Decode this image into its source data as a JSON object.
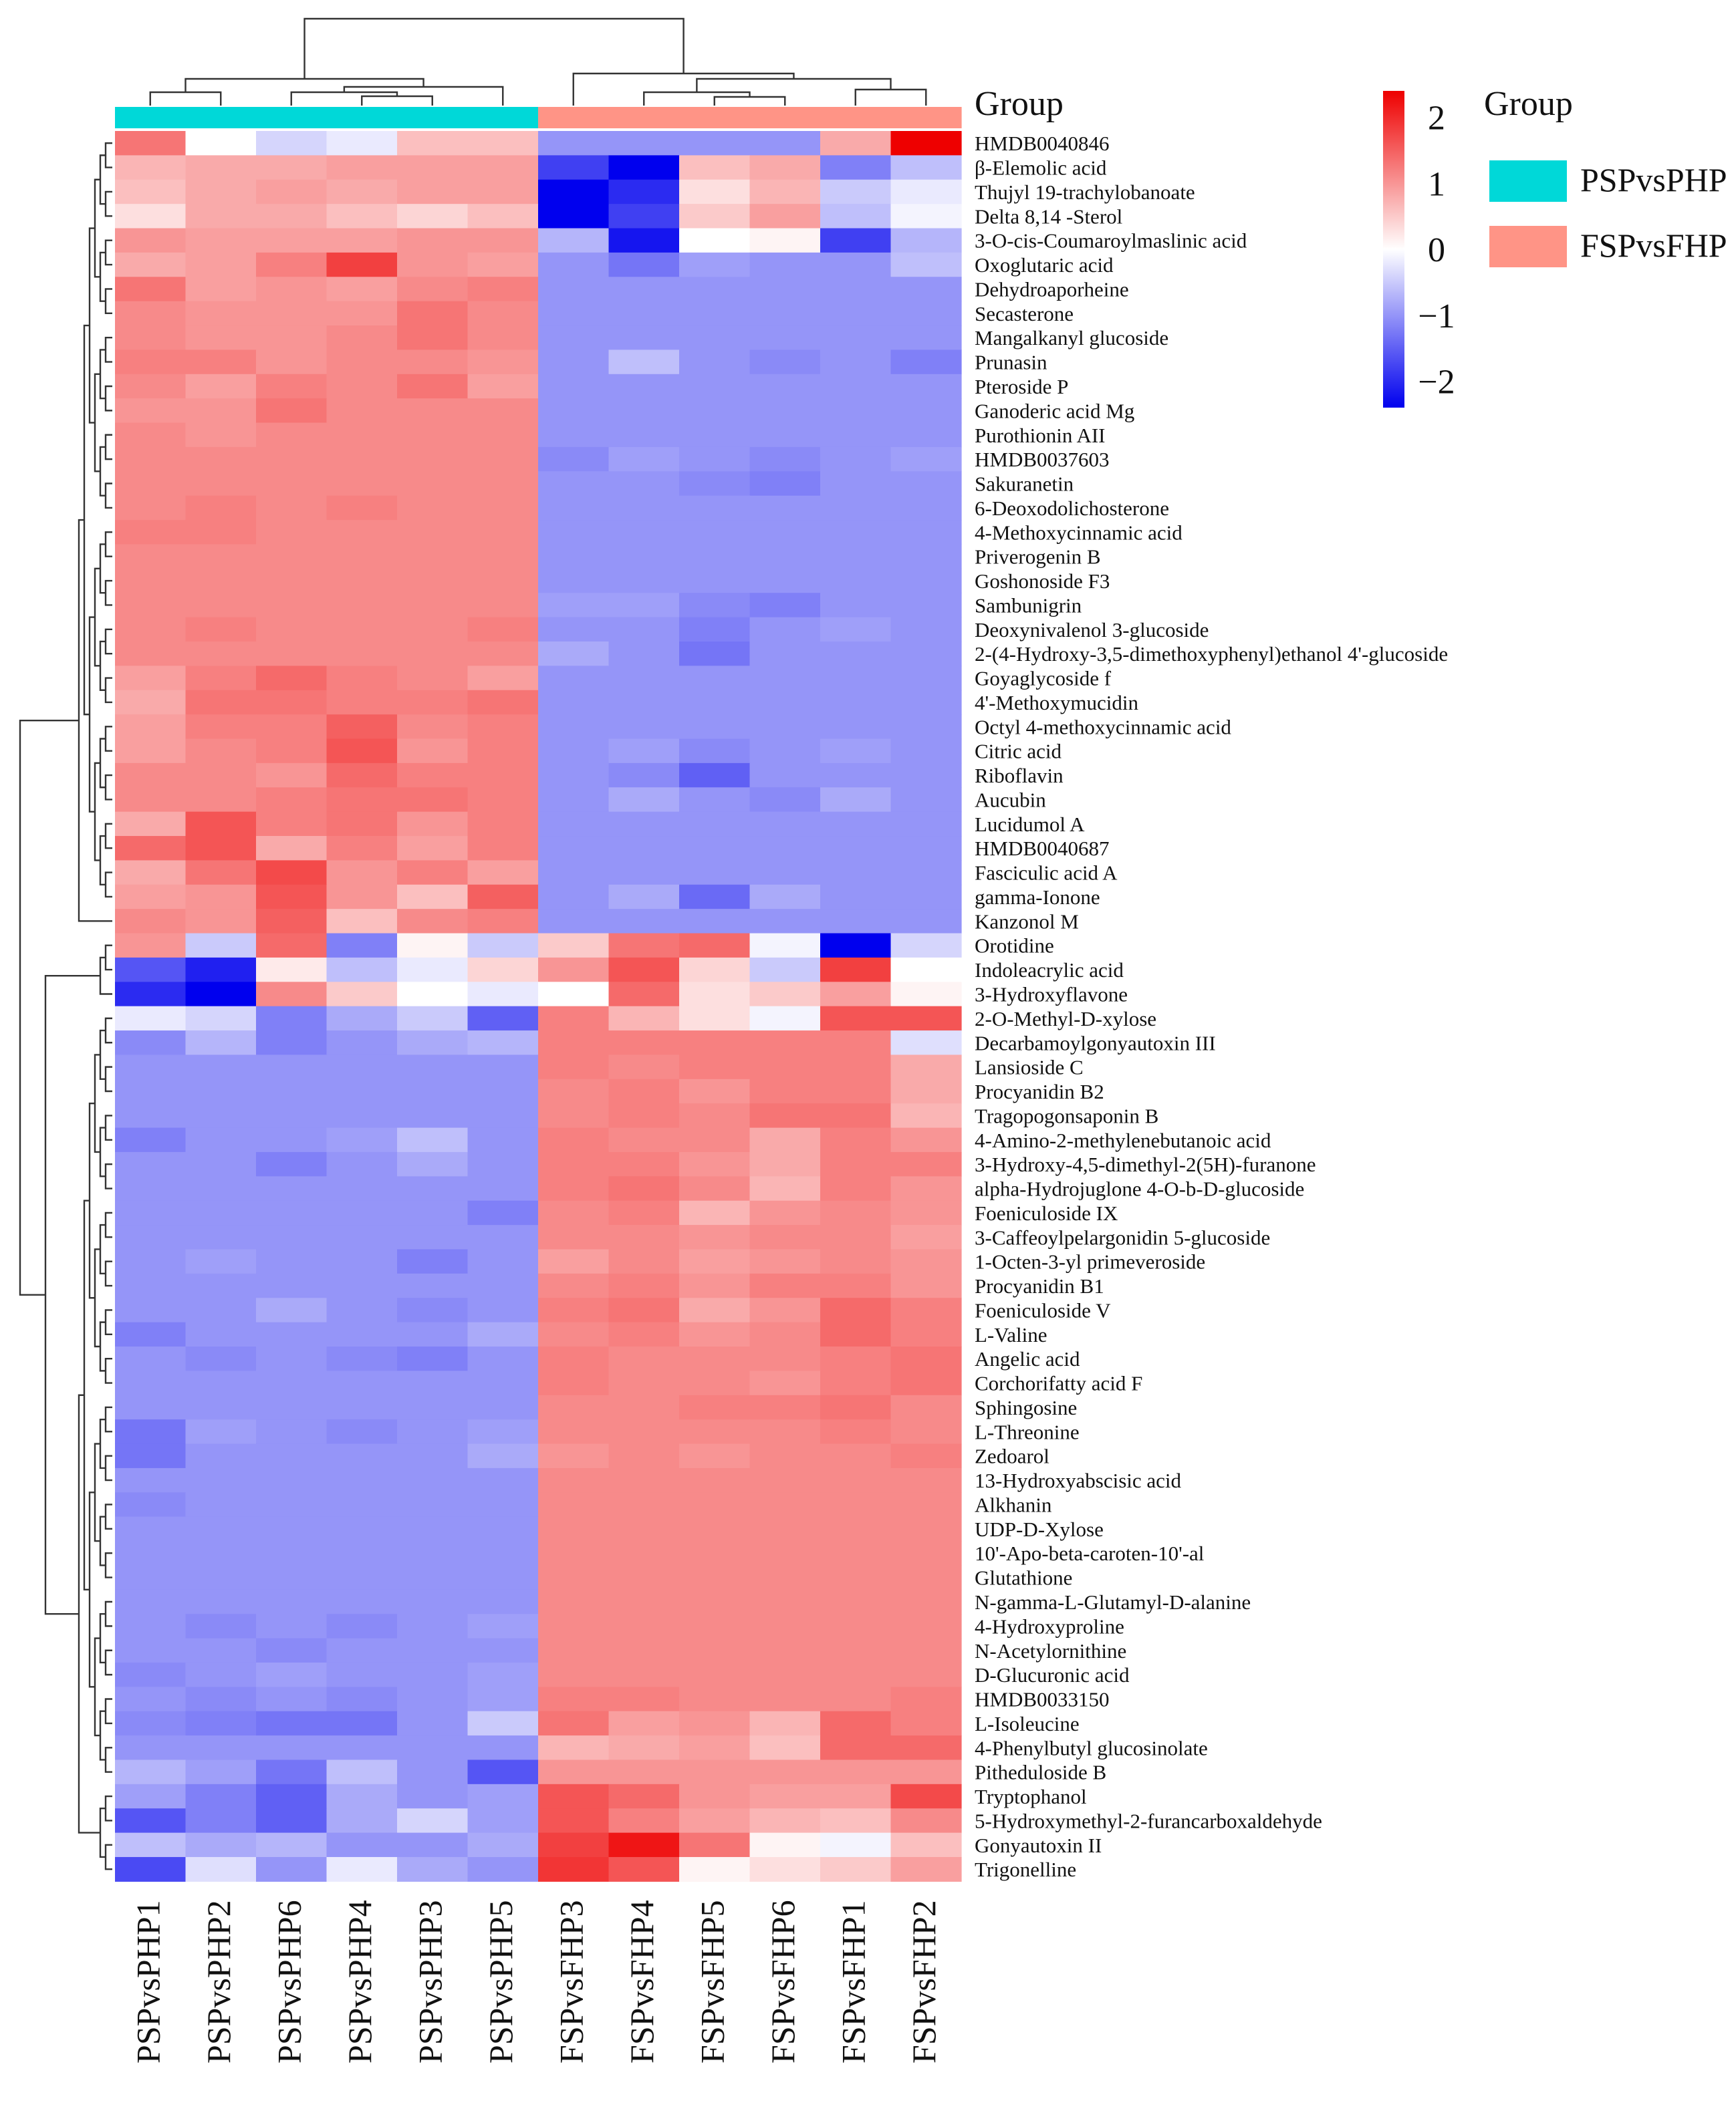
{
  "chart_data": {
    "type": "heatmap",
    "title": "",
    "color_scale": {
      "min": -2.4,
      "max": 2.4,
      "low_color": "#0000ee",
      "mid_color": "#ffffff",
      "high_color": "#ee0000",
      "ticks": [
        2,
        1,
        0,
        -1,
        -2
      ],
      "tick_labels": [
        "2",
        "1",
        "0",
        "−1",
        "−2"
      ]
    },
    "group_annotation": {
      "label": "Group",
      "legend_title": "Group",
      "groups": [
        {
          "name": "PSPvsPHP",
          "color": "#00d8d8"
        },
        {
          "name": "FSPvsFHP",
          "color": "#ff9486"
        }
      ],
      "column_groups": [
        "PSPvsPHP",
        "PSPvsPHP",
        "PSPvsPHP",
        "PSPvsPHP",
        "PSPvsPHP",
        "PSPvsPHP",
        "FSPvsFHP",
        "FSPvsFHP",
        "FSPvsFHP",
        "FSPvsFHP",
        "FSPvsFHP",
        "FSPvsFHP"
      ]
    },
    "columns": [
      "PSPvsPHP1",
      "PSPvsPHP2",
      "PSPvsPHP6",
      "PSPvsPHP4",
      "PSPvsPHP3",
      "PSPvsPHP5",
      "FSPvsFHP3",
      "FSPvsFHP4",
      "FSPvsFHP5",
      "FSPvsFHP6",
      "FSPvsFHP1",
      "FSPvsFHP2"
    ],
    "rows": [
      "HMDB0040846",
      "β-Elemolic acid",
      "Thujyl 19-trachylobanoate",
      "Delta 8,14 -Sterol",
      "3-O-cis-Coumaroylmaslinic acid",
      "Oxoglutaric acid",
      "Dehydroaporheine",
      "Secasterone",
      "Mangalkanyl glucoside",
      "Prunasin",
      "Pteroside P",
      "Ganoderic acid Mg",
      "Purothionin AII",
      "HMDB0037603",
      "Sakuranetin",
      "6-Deoxodolichosterone",
      "4-Methoxycinnamic acid",
      "Priverogenin B",
      "Goshonoside F3",
      "Sambunigrin",
      "Deoxynivalenol 3-glucoside",
      "2-(4-Hydroxy-3,5-dimethoxyphenyl)ethanol 4'-glucoside",
      "Goyaglycoside f",
      "4'-Methoxymucidin",
      "Octyl 4-methoxycinnamic acid",
      "Citric acid",
      "Riboflavin",
      "Aucubin",
      "Lucidumol A",
      "HMDB0040687",
      "Fasciculic acid A",
      "gamma-Ionone",
      "Kanzonol M",
      "Orotidine",
      "Indoleacrylic acid",
      "3-Hydroxyflavone",
      "2-O-Methyl-D-xylose",
      "Decarbamoylgonyautoxin III",
      "Lansioside C",
      "Procyanidin B2",
      "Tragopogonsaponin B",
      "4-Amino-2-methylenebutanoic acid",
      "3-Hydroxy-4,5-dimethyl-2(5H)-furanone",
      "alpha-Hydrojuglone 4-O-b-D-glucoside",
      "Foeniculoside IX",
      "3-Caffeoylpelargonidin 5-glucoside",
      "1-Octen-3-yl primeveroside",
      "Procyanidin B1",
      "Foeniculoside V",
      "L-Valine",
      "Angelic acid",
      "Corchorifatty acid F",
      "Sphingosine",
      "L-Threonine",
      "Zedoarol",
      "13-Hydroxyabscisic acid",
      "Alkhanin",
      "UDP-D-Xylose",
      "10'-Apo-beta-caroten-10'-al",
      "Glutathione",
      "N-gamma-L-Glutamyl-D-alanine",
      "4-Hydroxyproline",
      "N-Acetylornithine",
      "D-Glucuronic acid",
      "HMDB0033150",
      "L-Isoleucine",
      "4-Phenylbutyl glucosinolate",
      "Pitheduloside B",
      "Tryptophanol",
      "5-Hydroxymethyl-2-furancarboxaldehyde",
      "Gonyautoxin II",
      "Trigonelline"
    ],
    "values": [
      [
        1.3,
        0.0,
        -0.4,
        -0.2,
        0.6,
        0.6,
        -1.0,
        -1.0,
        -1.0,
        -1.0,
        0.8,
        2.4
      ],
      [
        0.7,
        0.8,
        0.8,
        0.9,
        0.9,
        0.9,
        -1.8,
        -2.4,
        0.6,
        0.8,
        -1.2,
        -0.6
      ],
      [
        0.6,
        0.8,
        0.9,
        0.8,
        0.9,
        0.9,
        -2.4,
        -2.0,
        0.3,
        0.7,
        -0.5,
        -0.2
      ],
      [
        0.3,
        0.8,
        0.8,
        0.6,
        0.4,
        0.6,
        -2.4,
        -1.8,
        0.5,
        0.9,
        -0.6,
        -0.1
      ],
      [
        1.0,
        0.9,
        0.9,
        0.9,
        1.0,
        1.0,
        -0.7,
        -2.2,
        0.0,
        0.1,
        -1.8,
        -0.7
      ],
      [
        0.8,
        0.9,
        1.2,
        1.8,
        1.0,
        0.9,
        -1.0,
        -1.3,
        -0.9,
        -1.0,
        -1.0,
        -0.6
      ],
      [
        1.3,
        0.9,
        1.0,
        0.9,
        1.1,
        1.2,
        -1.0,
        -1.0,
        -1.0,
        -1.0,
        -1.0,
        -1.0
      ],
      [
        1.1,
        1.0,
        1.0,
        1.0,
        1.3,
        1.1,
        -1.0,
        -1.0,
        -1.0,
        -1.0,
        -1.0,
        -1.0
      ],
      [
        1.1,
        1.0,
        1.0,
        1.1,
        1.3,
        1.1,
        -1.0,
        -1.0,
        -1.0,
        -1.0,
        -1.0,
        -1.0
      ],
      [
        1.2,
        1.2,
        1.0,
        1.1,
        1.1,
        1.0,
        -1.0,
        -0.6,
        -1.0,
        -1.1,
        -1.0,
        -1.2
      ],
      [
        1.1,
        0.9,
        1.2,
        1.1,
        1.3,
        0.9,
        -1.0,
        -1.0,
        -1.0,
        -1.0,
        -1.0,
        -1.0
      ],
      [
        1.0,
        1.0,
        1.3,
        1.1,
        1.1,
        1.1,
        -1.0,
        -1.0,
        -1.0,
        -1.0,
        -1.0,
        -1.0
      ],
      [
        1.1,
        1.0,
        1.1,
        1.1,
        1.1,
        1.1,
        -1.0,
        -1.0,
        -1.0,
        -1.0,
        -1.0,
        -1.0
      ],
      [
        1.1,
        1.1,
        1.1,
        1.1,
        1.1,
        1.1,
        -1.1,
        -0.9,
        -1.0,
        -1.1,
        -1.0,
        -0.9
      ],
      [
        1.1,
        1.1,
        1.1,
        1.1,
        1.1,
        1.1,
        -1.0,
        -1.0,
        -1.1,
        -1.2,
        -1.0,
        -1.0
      ],
      [
        1.1,
        1.2,
        1.1,
        1.2,
        1.1,
        1.1,
        -1.0,
        -1.0,
        -1.0,
        -1.0,
        -1.0,
        -1.0
      ],
      [
        1.2,
        1.2,
        1.1,
        1.1,
        1.1,
        1.1,
        -1.0,
        -1.0,
        -1.0,
        -1.0,
        -1.0,
        -1.0
      ],
      [
        1.1,
        1.1,
        1.1,
        1.1,
        1.1,
        1.1,
        -1.0,
        -1.0,
        -1.0,
        -1.0,
        -1.0,
        -1.0
      ],
      [
        1.1,
        1.1,
        1.1,
        1.1,
        1.1,
        1.1,
        -1.0,
        -1.0,
        -1.0,
        -1.0,
        -1.0,
        -1.0
      ],
      [
        1.1,
        1.1,
        1.1,
        1.1,
        1.1,
        1.1,
        -0.9,
        -0.9,
        -1.1,
        -1.2,
        -1.0,
        -1.0
      ],
      [
        1.1,
        1.2,
        1.1,
        1.1,
        1.1,
        1.2,
        -1.0,
        -1.0,
        -1.2,
        -1.0,
        -0.9,
        -1.0
      ],
      [
        1.1,
        1.1,
        1.1,
        1.1,
        1.1,
        1.1,
        -0.8,
        -1.0,
        -1.3,
        -1.0,
        -1.0,
        -1.0
      ],
      [
        0.9,
        1.2,
        1.4,
        1.2,
        1.1,
        0.9,
        -1.0,
        -1.0,
        -1.0,
        -1.0,
        -1.0,
        -1.0
      ],
      [
        0.8,
        1.3,
        1.3,
        1.2,
        1.2,
        1.3,
        -1.0,
        -1.0,
        -1.0,
        -1.0,
        -1.0,
        -1.0
      ],
      [
        0.9,
        1.2,
        1.2,
        1.5,
        1.1,
        1.2,
        -1.0,
        -1.0,
        -1.0,
        -1.0,
        -1.0,
        -1.0
      ],
      [
        0.9,
        1.1,
        1.2,
        1.6,
        1.0,
        1.2,
        -1.0,
        -0.9,
        -1.1,
        -1.0,
        -0.9,
        -1.0
      ],
      [
        1.1,
        1.1,
        1.0,
        1.4,
        1.2,
        1.2,
        -1.0,
        -1.1,
        -1.5,
        -1.0,
        -1.0,
        -1.0
      ],
      [
        1.1,
        1.1,
        1.2,
        1.3,
        1.3,
        1.2,
        -1.0,
        -0.8,
        -1.0,
        -1.1,
        -0.8,
        -1.0
      ],
      [
        0.8,
        1.6,
        1.2,
        1.3,
        1.0,
        1.2,
        -1.0,
        -1.0,
        -1.0,
        -1.0,
        -1.0,
        -1.0
      ],
      [
        1.4,
        1.6,
        0.8,
        1.2,
        0.9,
        1.2,
        -1.0,
        -1.0,
        -1.0,
        -1.0,
        -1.0,
        -1.0
      ],
      [
        0.8,
        1.3,
        1.7,
        1.0,
        1.2,
        0.9,
        -1.0,
        -1.0,
        -1.0,
        -1.0,
        -1.0,
        -1.0
      ],
      [
        0.9,
        1.0,
        1.6,
        1.0,
        0.6,
        1.5,
        -1.0,
        -0.8,
        -1.4,
        -0.8,
        -1.0,
        -1.0
      ],
      [
        1.1,
        1.0,
        1.5,
        0.6,
        1.1,
        1.2,
        -1.0,
        -1.0,
        -1.0,
        -1.0,
        -1.0,
        -1.0
      ],
      [
        1.0,
        -0.5,
        1.4,
        -1.2,
        0.1,
        -0.5,
        0.5,
        1.3,
        1.4,
        -0.1,
        -2.4,
        -0.4
      ],
      [
        -1.6,
        -2.1,
        0.2,
        -0.6,
        -0.2,
        0.4,
        1.0,
        1.6,
        0.4,
        -0.5,
        1.8,
        0.0
      ],
      [
        -2.0,
        -2.4,
        1.1,
        0.5,
        0.0,
        -0.2,
        0.0,
        1.4,
        0.3,
        0.5,
        0.9,
        0.1
      ],
      [
        -0.2,
        -0.4,
        -1.2,
        -0.8,
        -0.5,
        -1.5,
        1.2,
        0.7,
        0.3,
        -0.1,
        1.6,
        1.6
      ],
      [
        -1.1,
        -0.7,
        -1.2,
        -1.0,
        -0.8,
        -0.7,
        1.2,
        1.2,
        1.2,
        1.2,
        1.2,
        -0.3
      ],
      [
        -1.0,
        -1.0,
        -1.0,
        -1.0,
        -1.0,
        -1.0,
        1.2,
        1.1,
        1.2,
        1.2,
        1.2,
        0.8
      ],
      [
        -1.0,
        -1.0,
        -1.0,
        -1.0,
        -1.0,
        -1.0,
        1.1,
        1.2,
        1.0,
        1.2,
        1.2,
        0.8
      ],
      [
        -1.0,
        -1.0,
        -1.0,
        -1.0,
        -1.0,
        -1.0,
        1.1,
        1.2,
        1.1,
        1.3,
        1.3,
        0.7
      ],
      [
        -1.2,
        -1.0,
        -1.0,
        -0.9,
        -0.6,
        -1.0,
        1.2,
        1.1,
        1.1,
        0.8,
        1.2,
        1.0
      ],
      [
        -1.0,
        -1.0,
        -1.2,
        -1.0,
        -0.8,
        -1.0,
        1.2,
        1.2,
        1.0,
        0.8,
        1.2,
        1.2
      ],
      [
        -1.0,
        -1.0,
        -1.0,
        -1.0,
        -1.0,
        -1.0,
        1.2,
        1.3,
        1.1,
        0.7,
        1.2,
        1.0
      ],
      [
        -1.0,
        -1.0,
        -1.0,
        -1.0,
        -1.0,
        -1.2,
        1.1,
        1.2,
        0.7,
        1.0,
        1.1,
        1.0
      ],
      [
        -1.0,
        -1.0,
        -1.0,
        -1.0,
        -1.0,
        -1.0,
        1.1,
        1.1,
        1.0,
        1.1,
        1.1,
        0.9
      ],
      [
        -1.0,
        -0.9,
        -1.0,
        -1.0,
        -1.2,
        -1.0,
        0.9,
        1.1,
        0.9,
        1.0,
        1.1,
        1.0
      ],
      [
        -1.0,
        -1.0,
        -1.0,
        -1.0,
        -1.0,
        -1.0,
        1.1,
        1.2,
        1.0,
        1.2,
        1.2,
        1.0
      ],
      [
        -1.0,
        -1.0,
        -0.8,
        -1.0,
        -1.1,
        -1.0,
        1.2,
        1.3,
        0.8,
        1.0,
        1.4,
        1.2
      ],
      [
        -1.2,
        -1.0,
        -1.0,
        -1.0,
        -1.0,
        -0.8,
        1.1,
        1.2,
        1.0,
        1.1,
        1.4,
        1.2
      ],
      [
        -1.0,
        -1.1,
        -1.0,
        -1.1,
        -1.2,
        -1.0,
        1.2,
        1.1,
        1.1,
        1.1,
        1.2,
        1.3
      ],
      [
        -1.0,
        -1.0,
        -1.0,
        -1.0,
        -1.0,
        -1.0,
        1.2,
        1.1,
        1.1,
        1.0,
        1.2,
        1.3
      ],
      [
        -1.0,
        -1.0,
        -1.0,
        -1.0,
        -1.0,
        -1.0,
        1.1,
        1.1,
        1.2,
        1.2,
        1.3,
        1.1
      ],
      [
        -1.3,
        -0.9,
        -1.0,
        -1.1,
        -1.0,
        -0.9,
        1.1,
        1.1,
        1.1,
        1.1,
        1.2,
        1.1
      ],
      [
        -1.3,
        -1.0,
        -1.0,
        -1.0,
        -1.0,
        -0.8,
        1.0,
        1.1,
        1.0,
        1.1,
        1.1,
        1.2
      ],
      [
        -1.0,
        -1.0,
        -1.0,
        -1.0,
        -1.0,
        -1.0,
        1.1,
        1.1,
        1.1,
        1.1,
        1.1,
        1.1
      ],
      [
        -1.1,
        -1.0,
        -1.0,
        -1.0,
        -1.0,
        -1.0,
        1.1,
        1.1,
        1.1,
        1.1,
        1.1,
        1.1
      ],
      [
        -1.0,
        -1.0,
        -1.0,
        -1.0,
        -1.0,
        -1.0,
        1.1,
        1.1,
        1.1,
        1.1,
        1.1,
        1.1
      ],
      [
        -1.0,
        -1.0,
        -1.0,
        -1.0,
        -1.0,
        -1.0,
        1.1,
        1.1,
        1.1,
        1.1,
        1.1,
        1.1
      ],
      [
        -1.0,
        -1.0,
        -1.0,
        -1.0,
        -1.0,
        -1.0,
        1.1,
        1.1,
        1.1,
        1.1,
        1.1,
        1.1
      ],
      [
        -1.0,
        -1.0,
        -1.0,
        -1.0,
        -1.0,
        -1.0,
        1.1,
        1.1,
        1.1,
        1.1,
        1.1,
        1.1
      ],
      [
        -1.0,
        -1.1,
        -1.0,
        -1.1,
        -1.0,
        -0.9,
        1.1,
        1.1,
        1.1,
        1.1,
        1.1,
        1.1
      ],
      [
        -1.0,
        -1.0,
        -1.1,
        -1.0,
        -1.0,
        -1.0,
        1.1,
        1.1,
        1.1,
        1.1,
        1.1,
        1.1
      ],
      [
        -1.1,
        -1.0,
        -0.9,
        -1.0,
        -1.0,
        -0.9,
        1.1,
        1.1,
        1.1,
        1.1,
        1.1,
        1.1
      ],
      [
        -1.0,
        -1.1,
        -1.0,
        -1.1,
        -1.0,
        -0.9,
        1.2,
        1.2,
        1.1,
        1.1,
        1.1,
        1.2
      ],
      [
        -1.1,
        -1.2,
        -1.3,
        -1.3,
        -1.0,
        -0.5,
        1.3,
        0.9,
        1.0,
        0.7,
        1.4,
        1.2
      ],
      [
        -1.0,
        -1.0,
        -1.0,
        -1.0,
        -1.0,
        -1.0,
        0.7,
        0.8,
        0.9,
        0.6,
        1.4,
        1.4
      ],
      [
        -0.7,
        -0.9,
        -1.3,
        -0.6,
        -1.0,
        -1.6,
        1.0,
        1.0,
        1.0,
        1.0,
        1.0,
        1.0
      ],
      [
        -0.9,
        -1.2,
        -1.5,
        -0.8,
        -1.0,
        -0.9,
        1.6,
        1.4,
        1.0,
        0.9,
        0.9,
        1.7
      ],
      [
        -1.6,
        -1.2,
        -1.5,
        -0.8,
        -0.4,
        -0.9,
        1.6,
        1.2,
        0.9,
        0.7,
        0.6,
        1.1
      ],
      [
        -0.6,
        -0.8,
        -0.7,
        -1.0,
        -1.0,
        -0.8,
        1.8,
        2.2,
        1.3,
        0.1,
        -0.1,
        0.6
      ],
      [
        -1.7,
        -0.3,
        -1.0,
        -0.2,
        -0.8,
        -1.0,
        1.9,
        1.6,
        0.1,
        0.3,
        0.5,
        0.9
      ]
    ]
  }
}
